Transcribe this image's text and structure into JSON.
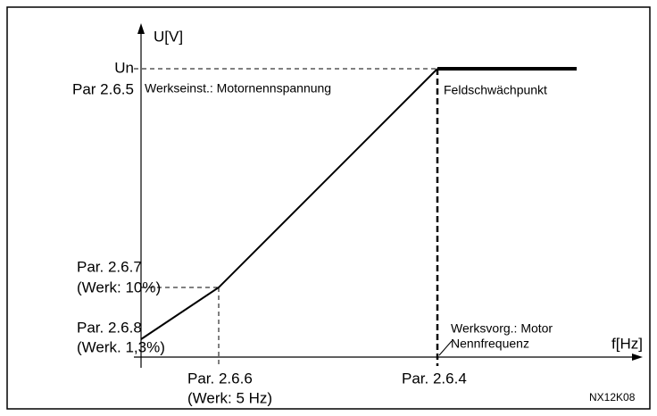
{
  "diagram": {
    "y_axis_label": "U[V]",
    "x_axis_label": "f[Hz]",
    "labels": {
      "un": "Un",
      "par_265": "Par 2.6.5",
      "werkseinst": "Werkseinst.: Motornennspannung",
      "feldschwaechpunkt": "Feldschwächpunkt",
      "par_267": "Par. 2.6.7",
      "werk_10": "(Werk: 10%)",
      "par_268": "Par. 2.6.8",
      "werk_13": "(Werk. 1,3%)",
      "werksvorg_1": "Werksvorg.: Motor",
      "werksvorg_2": "Nennfrequenz",
      "par_266": "Par. 2.6.6",
      "werk_5hz": "(Werk: 5 Hz)",
      "par_264": "Par. 2.6.4",
      "code": "NX12K08"
    }
  }
}
